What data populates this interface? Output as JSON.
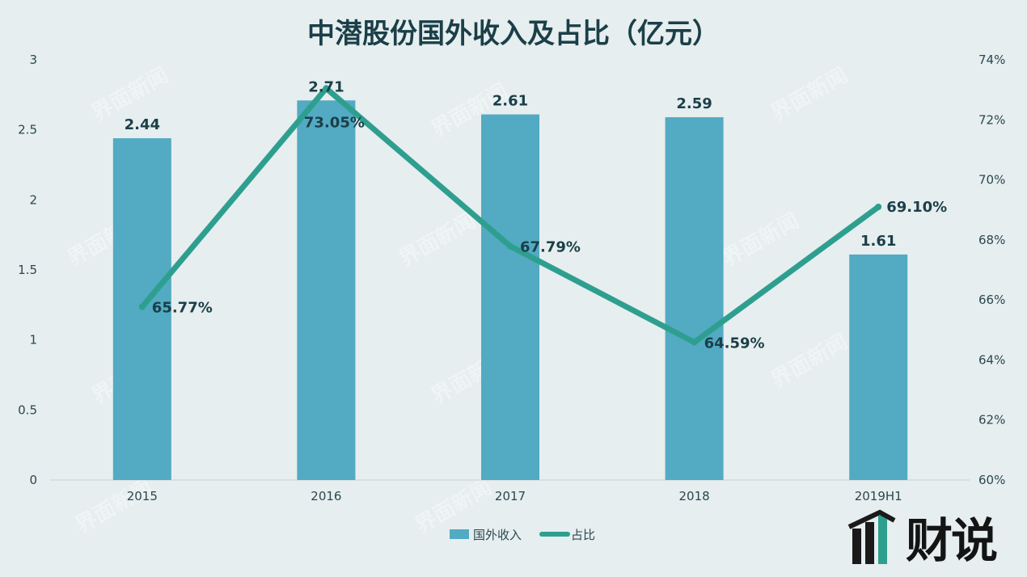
{
  "chart_data": {
    "type": "bar",
    "title": "中潜股份国外收入及占比（亿元）",
    "categories": [
      "2015",
      "2016",
      "2017",
      "2018",
      "2019H1"
    ],
    "series": [
      {
        "name": "国外收入",
        "type": "bar",
        "axis": "left",
        "values": [
          2.44,
          2.71,
          2.61,
          2.59,
          1.61
        ],
        "labels": [
          "2.44",
          "2.71",
          "2.61",
          "2.59",
          "1.61"
        ],
        "color": "#53aac3"
      },
      {
        "name": "占比",
        "type": "line",
        "axis": "right",
        "values": [
          65.77,
          73.05,
          67.79,
          64.59,
          69.1
        ],
        "labels": [
          "65.77%",
          "73.05%",
          "67.79%",
          "64.59%",
          "69.10%"
        ],
        "color": "#2e9f8f"
      }
    ],
    "y_left": {
      "ylim": [
        0,
        3
      ],
      "ticks": [
        "0",
        "0.5",
        "1",
        "1.5",
        "2",
        "2.5",
        "3"
      ],
      "tick_values": [
        0,
        0.5,
        1,
        1.5,
        2,
        2.5,
        3
      ]
    },
    "y_right": {
      "ylim": [
        60,
        74
      ],
      "ticks": [
        "60%",
        "62%",
        "64%",
        "66%",
        "68%",
        "70%",
        "72%",
        "74%"
      ],
      "tick_values": [
        60,
        62,
        64,
        66,
        68,
        70,
        72,
        74
      ]
    },
    "grid": false,
    "legend_position": "bottom"
  },
  "watermark": {
    "text": "界面新闻",
    "logo_text": "财说"
  },
  "colors": {
    "background": "#e6eeef",
    "bar": "#53aac3",
    "line": "#2e9f8f",
    "text": "#1b3f48"
  }
}
